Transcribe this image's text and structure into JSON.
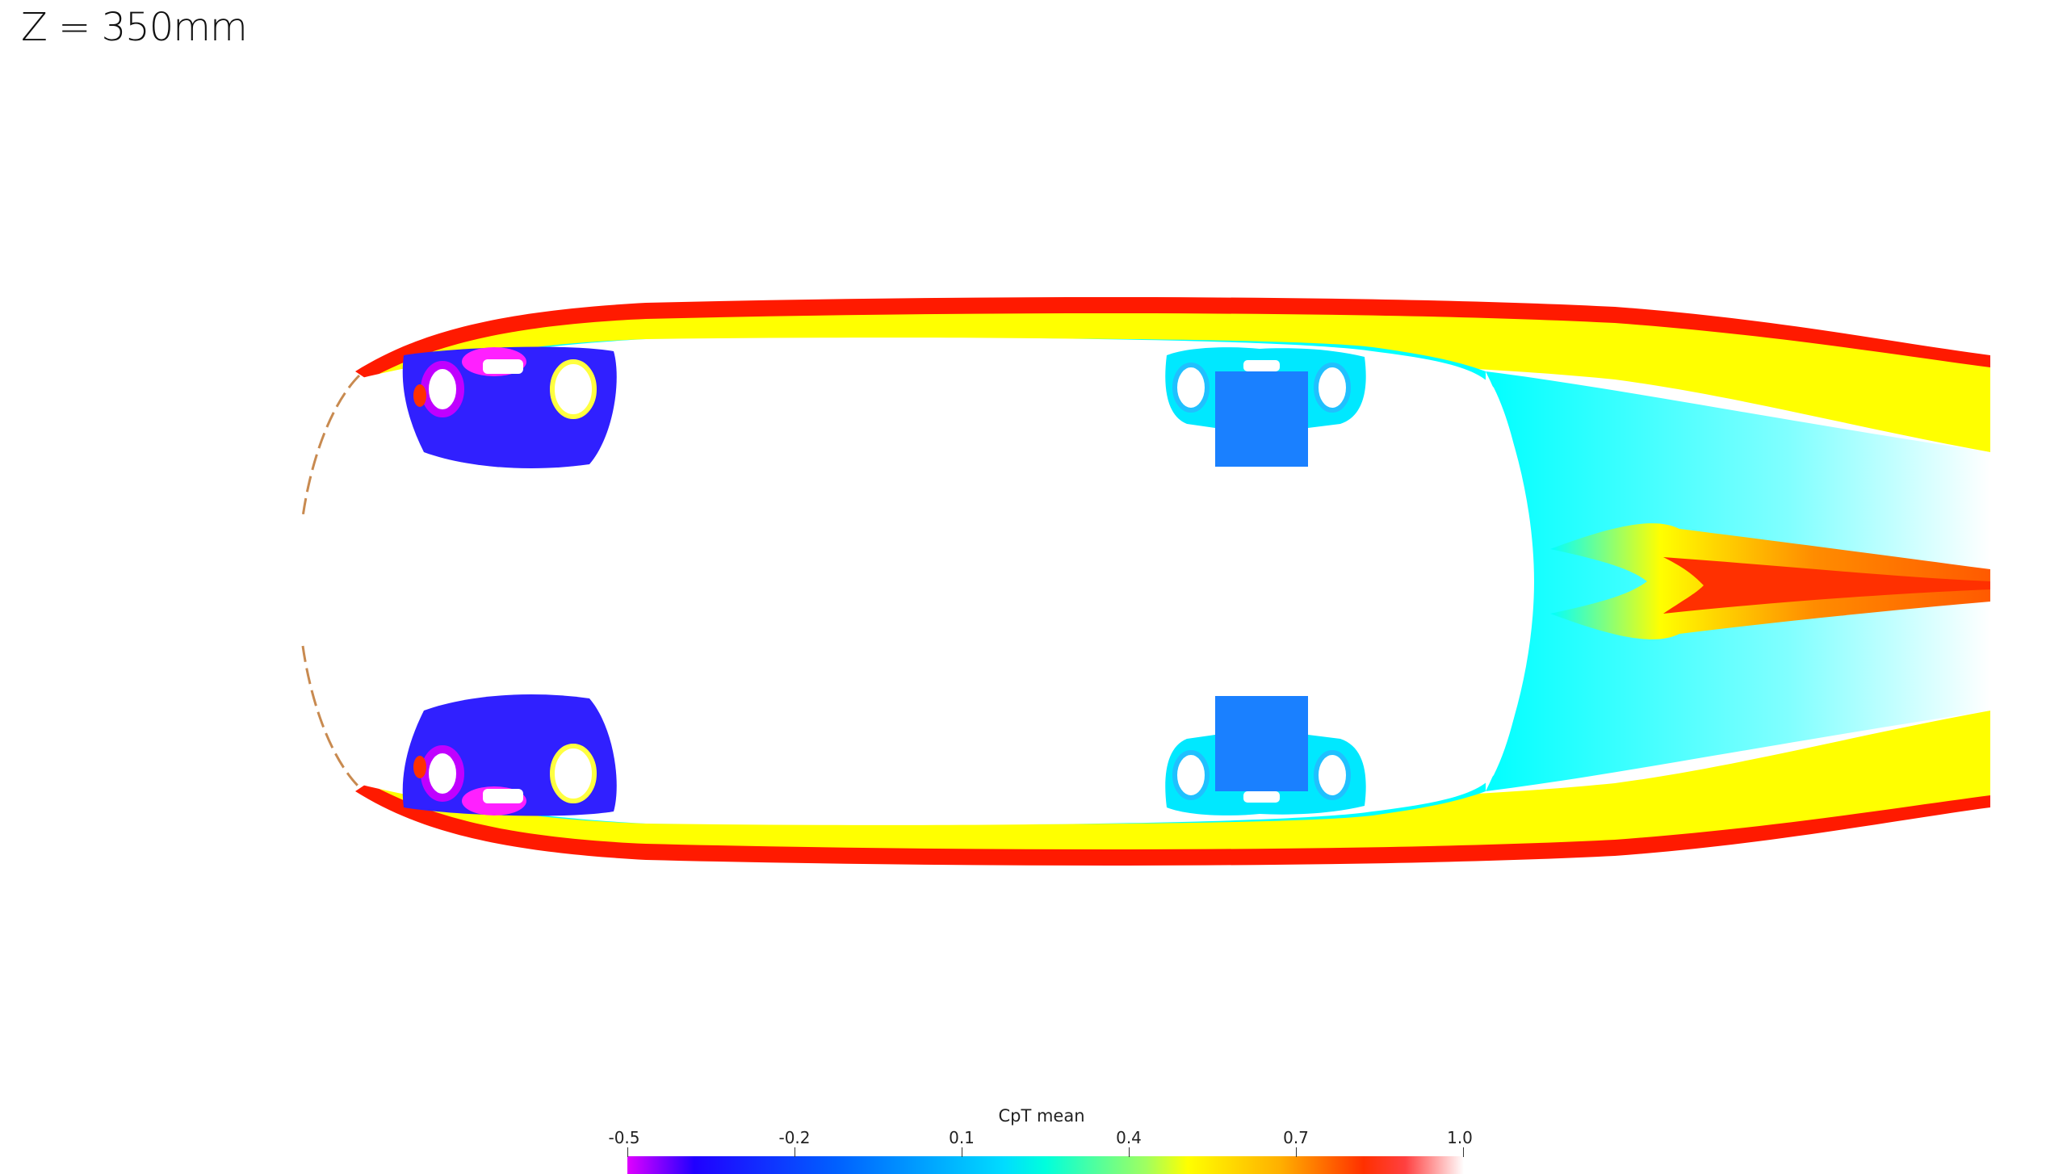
{
  "plane_label": "Z = 350mm",
  "colorbar": {
    "title": "CpT mean",
    "ticks": [
      "-0.5",
      "-0.2",
      "0.1",
      "0.4",
      "0.7",
      "1.0"
    ]
  },
  "colors": {
    "magenta": "#e000ff",
    "blue": "#2020ff",
    "cyan": "#00ffff",
    "yellow": "#ffff00",
    "orange": "#ff8c00",
    "red": "#ff1a00"
  }
}
